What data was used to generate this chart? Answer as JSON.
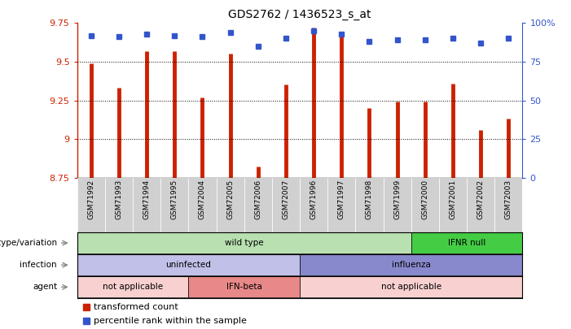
{
  "title": "GDS2762 / 1436523_s_at",
  "samples": [
    "GSM71992",
    "GSM71993",
    "GSM71994",
    "GSM71995",
    "GSM72004",
    "GSM72005",
    "GSM72006",
    "GSM72007",
    "GSM71996",
    "GSM71997",
    "GSM71998",
    "GSM71999",
    "GSM72000",
    "GSM72001",
    "GSM72002",
    "GSM72003"
  ],
  "transformed_count": [
    9.49,
    9.33,
    9.57,
    9.57,
    9.27,
    9.55,
    8.82,
    9.35,
    9.72,
    9.69,
    9.2,
    9.24,
    9.24,
    9.36,
    9.06,
    9.13
  ],
  "percentile_rank": [
    92,
    91,
    93,
    92,
    91,
    94,
    85,
    90,
    95,
    93,
    88,
    89,
    89,
    90,
    87,
    90
  ],
  "y_min": 8.75,
  "y_max": 9.75,
  "y_ticks": [
    8.75,
    9.0,
    9.25,
    9.5,
    9.75
  ],
  "y_tick_labels": [
    "8.75",
    "9",
    "9.25",
    "9.5",
    "9.75"
  ],
  "right_y_ticks": [
    0,
    25,
    50,
    75,
    100
  ],
  "right_y_labels": [
    "0",
    "25",
    "50",
    "75",
    "100%"
  ],
  "bar_color": "#cc2200",
  "dot_color": "#3355cc",
  "bar_bottom": 8.75,
  "grid_lines": [
    9.0,
    9.25,
    9.5
  ],
  "annotation_rows": [
    {
      "label": "genotype/variation",
      "segments": [
        {
          "text": "wild type",
          "start": 0,
          "end": 12,
          "color": "#b8e0b0"
        },
        {
          "text": "IFNR null",
          "start": 12,
          "end": 16,
          "color": "#44cc44"
        }
      ]
    },
    {
      "label": "infection",
      "segments": [
        {
          "text": "uninfected",
          "start": 0,
          "end": 8,
          "color": "#c0c0e8"
        },
        {
          "text": "influenza",
          "start": 8,
          "end": 16,
          "color": "#8888cc"
        }
      ]
    },
    {
      "label": "agent",
      "segments": [
        {
          "text": "not applicable",
          "start": 0,
          "end": 4,
          "color": "#f8d0d0"
        },
        {
          "text": "IFN-beta",
          "start": 4,
          "end": 8,
          "color": "#e88888"
        },
        {
          "text": "not applicable",
          "start": 8,
          "end": 16,
          "color": "#f8d0d0"
        }
      ]
    }
  ],
  "legend_items": [
    {
      "color": "#cc2200",
      "label": "transformed count"
    },
    {
      "color": "#3355cc",
      "label": "percentile rank within the sample"
    }
  ],
  "xtick_bg": "#cccccc",
  "plot_bg": "#ffffff",
  "fig_bg": "#ffffff"
}
